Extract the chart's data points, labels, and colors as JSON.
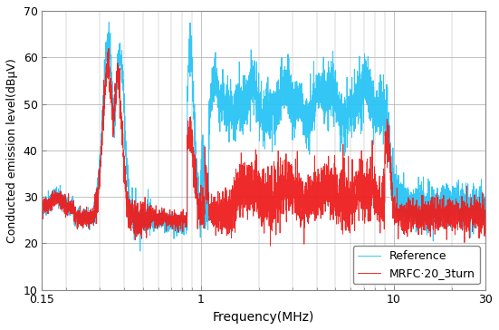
{
  "title": "",
  "xlabel": "Frequency(MHz)",
  "ylabel": "Conducted emission level(dBμV)",
  "xlim_log": [
    0.15,
    30
  ],
  "ylim": [
    10,
    70
  ],
  "yticks": [
    10,
    20,
    30,
    40,
    50,
    60,
    70
  ],
  "ref_color": "#29C4F5",
  "mrfc_color": "#EE1E1E",
  "legend_labels": [
    "Reference",
    "MRFC·20_3turn"
  ],
  "bg_color": "#ffffff",
  "grid_color": "#aaaaaa",
  "linewidth": 0.7
}
